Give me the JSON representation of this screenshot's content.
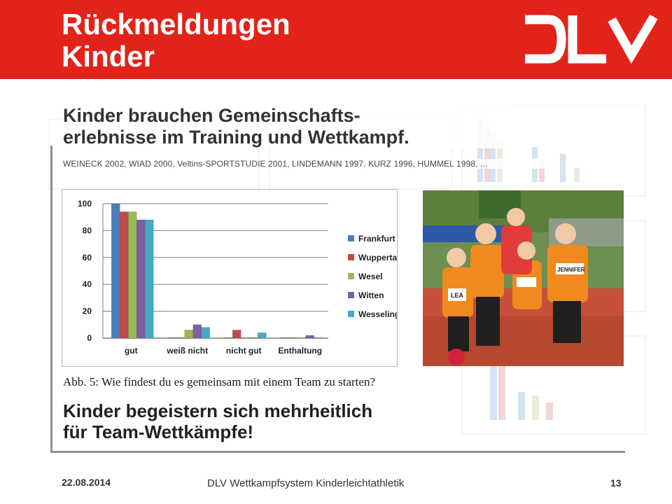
{
  "slide": {
    "title": "Rückmeldungen\nKinder",
    "subtitle": "Kinder brauchen Gemeinschafts-\nerlebnisse im Training und Wettkampf.",
    "references": "WEINECK 2002, WIAD 2000, Veltins-SPORTSTUDIE 2001, LINDEMANN 1997, KURZ 1996, HUMMEL 1998, ...",
    "caption": "Abb. 5: Wie findest du es gemeinsam mit einem Team zu starten?",
    "conclusion": "Kinder begeistern sich mehrheitlich\nfür Team-Wettkämpfe!"
  },
  "footer": {
    "date": "22.08.2014",
    "text": "DLV Wettkampfsystem Kinderleichtathletik",
    "page": "13"
  },
  "colors": {
    "header_red": "#e2231a",
    "logo": "#ffffff"
  },
  "photo": {
    "icon": "children-relay-photo",
    "bibs": [
      "LEA",
      "JENNIFER"
    ]
  },
  "chart_data": {
    "type": "bar",
    "categories": [
      "gut",
      "weiß nicht",
      "nicht gut",
      "Enthaltung"
    ],
    "series": [
      {
        "name": "Frankfurt",
        "color": "#4a7ebb",
        "values": [
          100,
          0,
          0,
          0
        ]
      },
      {
        "name": "Wuppertal",
        "color": "#be4b48",
        "values": [
          94,
          0,
          6,
          0
        ]
      },
      {
        "name": "Wesel",
        "color": "#98b954",
        "values": [
          94,
          6,
          0,
          0
        ]
      },
      {
        "name": "Witten",
        "color": "#7d60a0",
        "values": [
          88,
          10,
          0,
          2
        ]
      },
      {
        "name": "Wesseling",
        "color": "#46aac5",
        "values": [
          88,
          8,
          4,
          0
        ]
      }
    ],
    "ylim": [
      0,
      100
    ],
    "yticks": [
      "0",
      "20",
      "40",
      "60",
      "80",
      "100"
    ],
    "grid": true,
    "legend": "right"
  }
}
